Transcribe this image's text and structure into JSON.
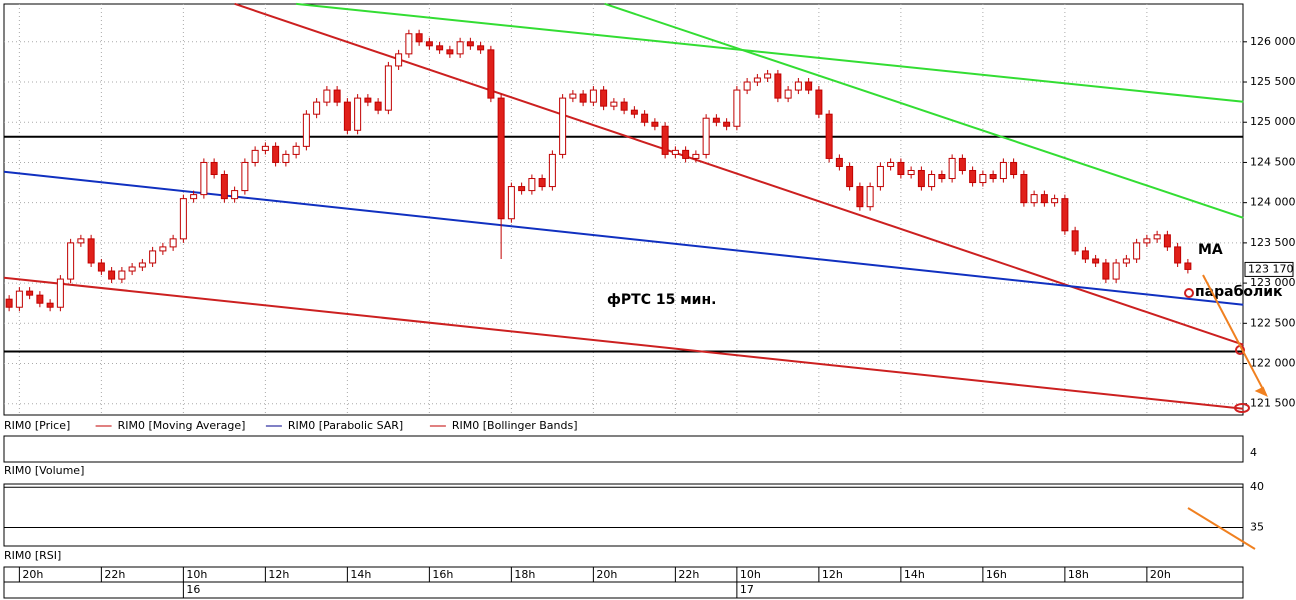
{
  "chart_data": {
    "type": "candlestick",
    "open": [
      122800,
      122700,
      122900,
      122850,
      122750,
      122700,
      123050,
      123500,
      123550,
      123250,
      123150,
      123050,
      123150,
      123200,
      123250,
      123400,
      123450,
      123550,
      124050,
      124100,
      124500,
      124350,
      124050,
      124150,
      124500,
      124650,
      124700,
      124500,
      124600,
      124700,
      125100,
      125250,
      125400,
      125250,
      124900,
      125300,
      125250,
      125150,
      125700,
      125850,
      126100,
      126000,
      125950,
      125900,
      125850,
      126000,
      125950,
      125900,
      125300,
      123800,
      124200,
      124150,
      124300,
      124200,
      124600,
      125300,
      125350,
      125250,
      125400,
      125200,
      125250,
      125150,
      125100,
      125000,
      124950,
      124600,
      124650,
      124550,
      124600,
      125050,
      125000,
      124950,
      125400,
      125500,
      125550,
      125600,
      125300,
      125400,
      125500,
      125400,
      125100,
      124550,
      124450,
      124200,
      123950,
      124200,
      124450,
      124500,
      124350,
      124400,
      124200,
      124350,
      124300,
      124550,
      124400,
      124250,
      124350,
      124300,
      124500,
      124350,
      124000,
      124100,
      124000,
      124050,
      123650,
      123400,
      123300,
      123250,
      123050,
      123250,
      123300,
      123500,
      123550,
      123600,
      123450,
      123250
    ],
    "high": [
      122850,
      122950,
      122950,
      122900,
      122800,
      123100,
      123550,
      123600,
      123600,
      123300,
      123200,
      123200,
      123250,
      123300,
      123450,
      123500,
      123600,
      124100,
      124150,
      124550,
      124550,
      124400,
      124200,
      124550,
      124700,
      124750,
      124750,
      124650,
      124750,
      125150,
      125300,
      125450,
      125450,
      125300,
      125350,
      125350,
      125300,
      125750,
      125900,
      126150,
      126150,
      126050,
      126000,
      125950,
      126050,
      126050,
      126000,
      125950,
      125350,
      124250,
      124250,
      124350,
      124350,
      124650,
      125350,
      125400,
      125400,
      125450,
      125450,
      125300,
      125300,
      125200,
      125150,
      125050,
      125000,
      124700,
      124700,
      124650,
      125100,
      125100,
      125050,
      125450,
      125550,
      125600,
      125650,
      125650,
      125450,
      125550,
      125550,
      125450,
      125150,
      124600,
      124500,
      124250,
      124250,
      124500,
      124550,
      124550,
      124450,
      124450,
      124400,
      124400,
      124600,
      124600,
      124450,
      124400,
      124400,
      124550,
      124550,
      124400,
      124150,
      124150,
      124100,
      124100,
      123700,
      123450,
      123350,
      123300,
      123300,
      123350,
      123550,
      123600,
      123650,
      123650,
      123500,
      123300
    ],
    "low": [
      122650,
      122650,
      122800,
      122700,
      122650,
      122650,
      123000,
      123450,
      123200,
      123100,
      123000,
      123000,
      123100,
      123150,
      123200,
      123350,
      123400,
      123500,
      124000,
      124050,
      124300,
      124000,
      124000,
      124100,
      124450,
      124600,
      124450,
      124450,
      124550,
      124650,
      125050,
      125200,
      125200,
      124850,
      124850,
      125200,
      125100,
      125100,
      125650,
      125800,
      125950,
      125900,
      125850,
      125800,
      125800,
      125900,
      125850,
      125250,
      123300,
      123750,
      124100,
      124100,
      124150,
      124150,
      124550,
      125250,
      125200,
      125200,
      125150,
      125150,
      125100,
      125050,
      124950,
      124900,
      124550,
      124550,
      124500,
      124500,
      124550,
      124950,
      124900,
      124900,
      125350,
      125450,
      125500,
      125250,
      125250,
      125350,
      125350,
      125050,
      124500,
      124400,
      124150,
      123900,
      123900,
      124150,
      124400,
      124300,
      124300,
      124150,
      124150,
      124250,
      124250,
      124350,
      124200,
      124200,
      124250,
      124250,
      124300,
      123950,
      123950,
      123950,
      123950,
      123600,
      123350,
      123250,
      123200,
      123000,
      123000,
      123200,
      123250,
      123450,
      123500,
      123400,
      123200,
      123120
    ],
    "close": [
      122700,
      122900,
      122850,
      122750,
      122700,
      123050,
      123500,
      123550,
      123250,
      123150,
      123050,
      123150,
      123200,
      123250,
      123400,
      123450,
      123550,
      124050,
      124100,
      124500,
      124350,
      124050,
      124150,
      124500,
      124650,
      124700,
      124500,
      124600,
      124700,
      125100,
      125250,
      125400,
      125250,
      124900,
      125300,
      125250,
      125150,
      125700,
      125850,
      126100,
      126000,
      125950,
      125900,
      125850,
      126000,
      125950,
      125900,
      125300,
      123800,
      124200,
      124150,
      124300,
      124200,
      124600,
      125300,
      125350,
      125250,
      125400,
      125200,
      125250,
      125150,
      125100,
      125000,
      124950,
      124600,
      124650,
      124550,
      124600,
      125050,
      125000,
      124950,
      125400,
      125500,
      125550,
      125600,
      125300,
      125400,
      125500,
      125400,
      125100,
      124550,
      124450,
      124200,
      123950,
      124200,
      124450,
      124500,
      124350,
      124400,
      124200,
      124350,
      124300,
      124550,
      124400,
      124250,
      124350,
      124300,
      124500,
      124350,
      124000,
      124100,
      124000,
      124050,
      123650,
      123400,
      123300,
      123250,
      123050,
      123250,
      123300,
      123500,
      123550,
      123600,
      123450,
      123250,
      123170
    ],
    "up_color": "#ffffff",
    "down_color": "#e0201a",
    "color": "#c00000",
    "ylim": [
      121360,
      126470
    ],
    "yticks": [
      {
        "value": 121500,
        "label": "121 500"
      },
      {
        "value": 122000,
        "label": "122 000"
      },
      {
        "value": 122500,
        "label": "122 500"
      },
      {
        "value": 123000,
        "label": "123 000"
      },
      {
        "value": 123500,
        "label": "123 500"
      },
      {
        "value": 124000,
        "label": "124 000"
      },
      {
        "value": 124500,
        "label": "124 500"
      },
      {
        "value": 125000,
        "label": "125 000"
      },
      {
        "value": 125500,
        "label": "125 500"
      },
      {
        "value": 126000,
        "label": "126 000"
      }
    ],
    "xticks": [
      {
        "value": 1,
        "label": "20h"
      },
      {
        "value": 9,
        "label": "22h"
      },
      {
        "value": 17,
        "label": "10h"
      },
      {
        "value": 25,
        "label": "12h"
      },
      {
        "value": 33,
        "label": "14h"
      },
      {
        "value": 41,
        "label": "16h"
      },
      {
        "value": 49,
        "label": "18h"
      },
      {
        "value": 57,
        "label": "20h"
      },
      {
        "value": 65,
        "label": "22h"
      },
      {
        "value": 71,
        "label": "10h"
      },
      {
        "value": 79,
        "label": "12h"
      },
      {
        "value": 87,
        "label": "14h"
      },
      {
        "value": 95,
        "label": "16h"
      },
      {
        "value": 103,
        "label": "18h"
      },
      {
        "value": 111,
        "label": "20h"
      }
    ],
    "day_labels": [
      {
        "value": 17,
        "label": "16"
      },
      {
        "value": 71,
        "label": "17"
      }
    ],
    "last_price": {
      "value": 123170,
      "label": "123 170"
    },
    "legend": [
      {
        "name": "RIM0 [Price]",
        "color": "#000000"
      },
      {
        "name": "RIM0 [Moving Average]",
        "color": "#c00000"
      },
      {
        "name": "RIM0 [Parabolic SAR]",
        "color": "#00008b"
      },
      {
        "name": "RIM0 [Bollinger Bands]",
        "color": "#c00000"
      }
    ],
    "trendlines": [
      {
        "color": "#33dd33",
        "x": [
          28,
          120.4
        ],
        "y": [
          126472,
          125254
        ]
      },
      {
        "color": "#33dd33",
        "x": [
          58.1,
          120.4
        ],
        "y": [
          126472,
          123812
        ]
      },
      {
        "color": "#cc2020",
        "x": [
          22,
          120.4
        ],
        "y": [
          126472,
          122234
        ]
      },
      {
        "color": "#cc2020",
        "x": [
          -0.5,
          120.4
        ],
        "y": [
          123067,
          121438
        ]
      },
      {
        "color": "#1030c0",
        "x": [
          -0.5,
          120.4
        ],
        "y": [
          124384,
          122731
        ]
      }
    ],
    "hlines": [
      124820,
      122150
    ],
    "annotations": [
      "фРТС   15 мин.",
      "MA",
      "параболик"
    ],
    "volume": {
      "title": "RIM0 [Volume]",
      "yticks": [
        4
      ]
    },
    "rsi": {
      "title": "RIM0 [RSI]",
      "ylim": [
        32.7,
        40.4
      ],
      "yticks": [
        35,
        40
      ]
    }
  }
}
